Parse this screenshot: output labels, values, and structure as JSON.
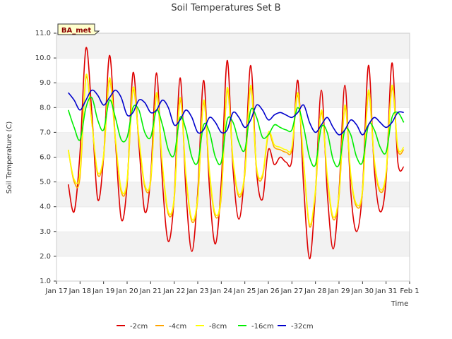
{
  "chart_data": {
    "type": "line",
    "title": "Soil Temperatures Set B",
    "xlabel": "Time",
    "ylabel": "Soil Temperature (C)",
    "ylim": [
      1.0,
      11.0
    ],
    "xlim": [
      "2024-01-17",
      "2024-02-01"
    ],
    "yticks": [
      "1.0",
      "2.0",
      "3.0",
      "4.0",
      "5.0",
      "6.0",
      "7.0",
      "8.0",
      "9.0",
      "10.0",
      "11.0"
    ],
    "xtick_labels": [
      "Jan 17",
      "Jan 18",
      "Jan 19",
      "Jan 20",
      "Jan 21",
      "Jan 22",
      "Jan 23",
      "Jan 24",
      "Jan 25",
      "Jan 26",
      "Jan 27",
      "Jan 28",
      "Jan 29",
      "Jan 30",
      "Jan 31",
      "Feb 1"
    ],
    "badge": "BA_met",
    "grid": "horizontal bands",
    "legend_position": "bottom",
    "x": [
      "Jan 17 12:00",
      "Jan 17 18:00",
      "Jan 18 00:00",
      "Jan 18 06:00",
      "Jan 18 12:00",
      "Jan 18 18:00",
      "Jan 19 00:00",
      "Jan 19 06:00",
      "Jan 19 12:00",
      "Jan 19 18:00",
      "Jan 20 00:00",
      "Jan 20 06:00",
      "Jan 20 12:00",
      "Jan 20 18:00",
      "Jan 21 00:00",
      "Jan 21 06:00",
      "Jan 21 12:00",
      "Jan 21 18:00",
      "Jan 22 00:00",
      "Jan 22 06:00",
      "Jan 22 12:00",
      "Jan 22 18:00",
      "Jan 23 00:00",
      "Jan 23 06:00",
      "Jan 23 12:00",
      "Jan 23 18:00",
      "Jan 24 00:00",
      "Jan 24 06:00",
      "Jan 24 12:00",
      "Jan 24 18:00",
      "Jan 25 00:00",
      "Jan 25 06:00",
      "Jan 25 12:00",
      "Jan 25 18:00",
      "Jan 26 00:00",
      "Jan 26 06:00",
      "Jan 26 12:00",
      "Jan 26 18:00",
      "Jan 27 00:00",
      "Jan 27 06:00",
      "Jan 27 12:00",
      "Jan 27 18:00",
      "Jan 28 00:00",
      "Jan 28 06:00",
      "Jan 28 12:00",
      "Jan 28 18:00",
      "Jan 29 00:00",
      "Jan 29 06:00",
      "Jan 29 12:00",
      "Jan 29 18:00",
      "Jan 30 00:00",
      "Jan 30 06:00",
      "Jan 30 12:00",
      "Jan 30 18:00",
      "Jan 31 00:00",
      "Jan 31 06:00",
      "Jan 31 12:00",
      "Jan 31 18:00"
    ],
    "series": [
      {
        "name": "-2cm",
        "color": "#dd0000",
        "values": [
          4.9,
          3.8,
          6.2,
          10.4,
          7.8,
          4.3,
          6.0,
          10.1,
          6.7,
          3.5,
          4.9,
          9.4,
          6.5,
          3.8,
          5.2,
          9.4,
          5.0,
          2.6,
          4.4,
          9.2,
          4.6,
          2.2,
          4.6,
          9.1,
          4.7,
          2.5,
          5.0,
          9.9,
          5.5,
          3.5,
          5.5,
          9.7,
          5.4,
          4.3,
          6.3,
          5.7,
          6.0,
          5.8,
          5.9,
          9.1,
          4.8,
          1.9,
          4.6,
          8.7,
          4.6,
          2.3,
          4.6,
          8.9,
          4.6,
          3.0,
          4.7,
          9.7,
          5.5,
          3.8,
          5.1,
          9.8,
          5.8,
          5.6
        ]
      },
      {
        "name": "-4cm",
        "color": "#ffa500",
        "values": [
          6.3,
          5.0,
          5.2,
          9.2,
          7.4,
          5.3,
          6.0,
          9.1,
          6.7,
          4.6,
          5.0,
          8.7,
          6.7,
          4.8,
          5.0,
          8.5,
          5.6,
          3.7,
          4.3,
          8.3,
          5.2,
          3.4,
          4.3,
          8.2,
          5.3,
          3.6,
          4.4,
          8.7,
          5.8,
          4.4,
          5.3,
          8.8,
          5.5,
          5.2,
          6.9,
          6.4,
          6.3,
          6.2,
          6.3,
          8.5,
          5.7,
          3.2,
          4.6,
          7.8,
          5.2,
          3.5,
          4.4,
          8.0,
          5.2,
          4.0,
          4.6,
          8.6,
          5.8,
          4.6,
          5.3,
          8.8,
          6.3,
          6.3
        ]
      },
      {
        "name": "-8cm",
        "color": "#ffff00",
        "values": [
          6.3,
          5.1,
          5.4,
          9.3,
          7.4,
          5.4,
          6.1,
          9.2,
          6.8,
          4.7,
          5.1,
          8.8,
          6.8,
          4.9,
          5.1,
          8.6,
          5.7,
          3.8,
          4.4,
          8.4,
          5.3,
          3.5,
          4.4,
          8.3,
          5.4,
          3.7,
          4.5,
          8.8,
          5.9,
          4.5,
          5.4,
          8.9,
          5.6,
          5.3,
          7.0,
          6.5,
          6.4,
          6.3,
          6.4,
          8.6,
          5.8,
          3.3,
          4.7,
          7.9,
          5.3,
          3.6,
          4.5,
          8.1,
          5.3,
          4.1,
          4.7,
          8.7,
          5.9,
          4.7,
          5.4,
          8.9,
          6.4,
          6.4
        ]
      },
      {
        "name": "-16cm",
        "color": "#00ee00",
        "values": [
          7.9,
          7.2,
          6.7,
          8.0,
          8.4,
          7.5,
          7.1,
          8.3,
          7.6,
          6.7,
          6.8,
          8.0,
          7.9,
          7.0,
          6.8,
          7.9,
          7.3,
          6.3,
          6.1,
          7.6,
          7.1,
          6.0,
          5.8,
          7.3,
          7.0,
          6.0,
          5.8,
          7.5,
          7.4,
          6.6,
          6.3,
          7.9,
          7.6,
          6.8,
          6.9,
          7.3,
          7.2,
          7.1,
          7.1,
          8.0,
          7.2,
          6.0,
          5.7,
          7.2,
          7.0,
          5.9,
          5.7,
          7.1,
          6.9,
          6.0,
          5.8,
          7.3,
          7.1,
          6.4,
          6.2,
          7.6,
          7.8,
          7.4
        ]
      },
      {
        "name": "-32cm",
        "color": "#0000cc",
        "values": [
          8.6,
          8.3,
          7.9,
          8.3,
          8.7,
          8.5,
          8.1,
          8.4,
          8.7,
          8.4,
          7.7,
          7.8,
          8.3,
          8.2,
          7.8,
          7.9,
          8.3,
          8.0,
          7.3,
          7.5,
          7.9,
          7.6,
          7.0,
          7.1,
          7.6,
          7.4,
          7.0,
          7.1,
          7.8,
          7.6,
          7.2,
          7.5,
          8.1,
          7.9,
          7.5,
          7.7,
          7.8,
          7.7,
          7.6,
          7.8,
          8.1,
          7.4,
          7.0,
          7.3,
          7.6,
          7.2,
          6.9,
          7.1,
          7.5,
          7.3,
          6.9,
          7.3,
          7.6,
          7.4,
          7.2,
          7.4,
          7.8,
          7.8
        ]
      }
    ]
  }
}
